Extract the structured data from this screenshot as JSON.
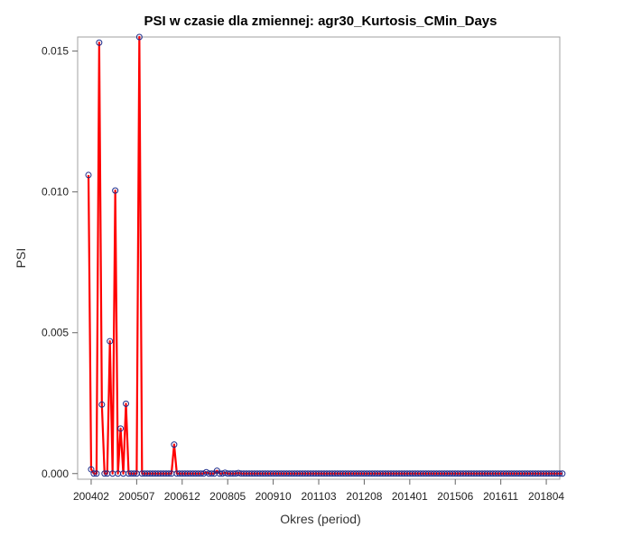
{
  "chart_data": {
    "type": "line",
    "title": "PSI w czasie dla zmiennej: agr30_Kurtosis_CMin_Days",
    "xlabel": "Okres (period)",
    "ylabel": "PSI",
    "x_tick_labels": [
      "200402",
      "200507",
      "200612",
      "200805",
      "200910",
      "201103",
      "201208",
      "201401",
      "201506",
      "201611",
      "201804"
    ],
    "y_tick_labels": [
      "0.000",
      "0.005",
      "0.010",
      "0.015"
    ],
    "y_ticks": [
      0,
      0.005,
      0.01,
      0.015
    ],
    "ylim": [
      -0.0002,
      0.0155
    ],
    "x_start": "200401",
    "x_end": "201806",
    "grid": false,
    "legend": "none",
    "colors": {
      "line": "#ff0000",
      "marker": "#1c2a8a",
      "axis": "#666666",
      "frame": "#a0a0a0"
    },
    "series": [
      {
        "values": [
          0.0106,
          0.00015,
          0.0,
          0.0,
          0.0153,
          0.00245,
          0.0,
          0.0,
          0.0047,
          0.0,
          0.01005,
          0.0,
          0.0016,
          0.0,
          0.00248,
          0.0,
          0.0,
          0.0,
          0.0,
          0.0155,
          0.0,
          0.0,
          0.0,
          0.0,
          0.0,
          0.0,
          0.0,
          0.0,
          0.0,
          0.0,
          0.0,
          0.0,
          0.00103,
          0.0,
          0.0,
          0.0,
          0.0,
          0.0,
          0.0,
          0.0,
          0.0,
          0.0,
          0.0,
          0.0,
          5e-05,
          0.0,
          0.0,
          0.0,
          0.0001,
          0.0,
          0.0,
          3e-05,
          0.0,
          0.0,
          0.0,
          0.0,
          2e-05,
          0.0,
          0.0,
          0.0,
          0.0,
          0.0,
          0.0,
          0.0,
          0.0,
          0.0,
          0.0,
          0.0,
          0.0,
          0.0,
          0.0,
          0.0,
          0.0,
          0.0,
          0.0,
          0.0,
          0.0,
          0.0,
          0.0,
          0.0,
          0.0,
          0.0,
          0.0,
          0.0,
          0.0,
          0.0,
          0.0,
          0.0,
          0.0,
          0.0,
          0.0,
          0.0,
          0.0,
          0.0,
          0.0,
          0.0,
          0.0,
          0.0,
          0.0,
          0.0,
          0.0,
          0.0,
          0.0,
          0.0,
          0.0,
          0.0,
          0.0,
          0.0,
          0.0,
          0.0,
          0.0,
          0.0,
          0.0,
          0.0,
          0.0,
          0.0,
          0.0,
          0.0,
          0.0,
          0.0,
          0.0,
          0.0,
          0.0,
          0.0,
          0.0,
          0.0,
          0.0,
          0.0,
          0.0,
          0.0,
          0.0,
          0.0,
          0.0,
          0.0,
          0.0,
          0.0,
          0.0,
          0.0,
          0.0,
          0.0,
          0.0,
          0.0,
          0.0,
          0.0,
          0.0,
          0.0,
          0.0,
          0.0,
          0.0,
          0.0,
          0.0,
          0.0,
          0.0,
          0.0,
          0.0,
          0.0,
          0.0,
          0.0,
          0.0,
          0.0,
          0.0,
          0.0,
          0.0,
          0.0,
          0.0,
          0.0,
          0.0,
          0.0,
          0.0,
          0.0,
          0.0,
          0.0,
          0.0,
          0.0,
          0.0,
          0.0,
          0.0,
          0.0
        ]
      }
    ]
  }
}
